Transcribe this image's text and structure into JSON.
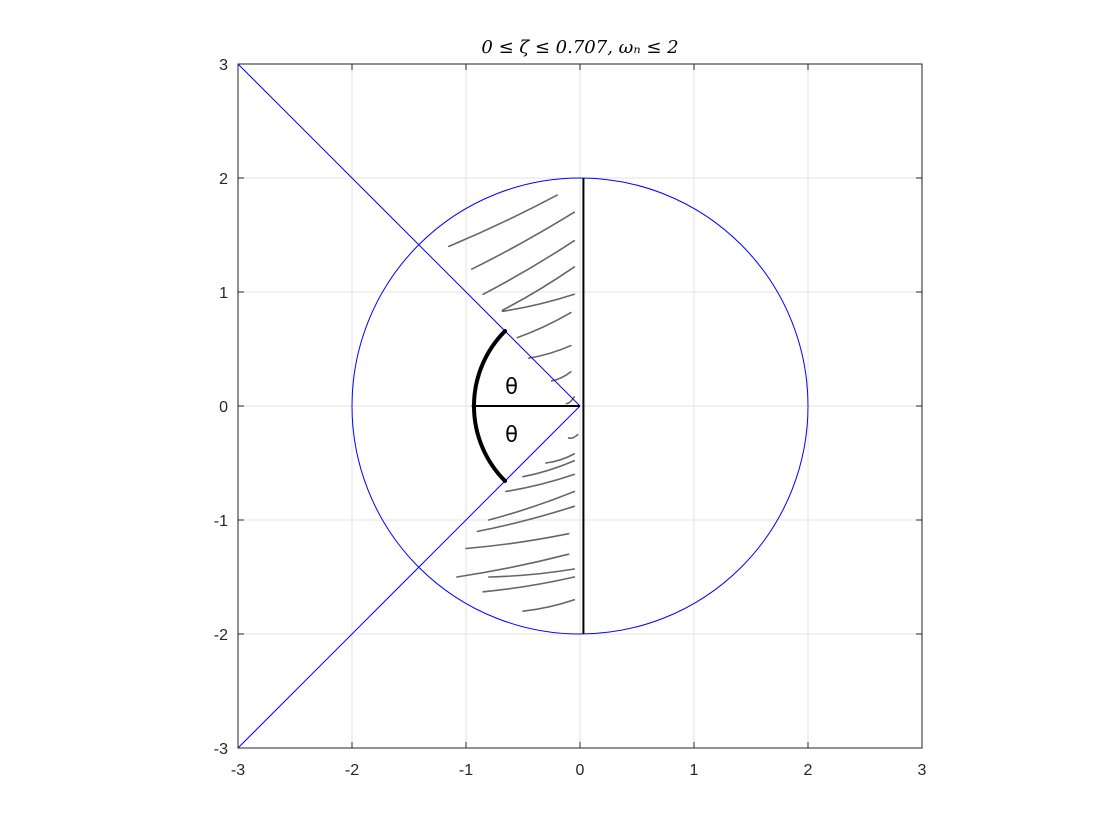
{
  "chart_data": {
    "type": "line",
    "title": "0 ≤ ζ ≤ 0.707, ωₙ ≤ 2",
    "xlabel": "",
    "ylabel": "",
    "xlim": [
      -3,
      3
    ],
    "ylim": [
      -3,
      3
    ],
    "grid": true,
    "x_ticks": [
      -3,
      -2,
      -1,
      0,
      1,
      2,
      3
    ],
    "y_ticks": [
      -3,
      -2,
      -1,
      0,
      1,
      2,
      3
    ],
    "x_tick_labels": [
      "-3",
      "-2",
      "-1",
      "0",
      "1",
      "2",
      "3"
    ],
    "y_tick_labels": [
      "-3",
      "-2",
      "-1",
      "0",
      "1",
      "2",
      "3"
    ],
    "series": [
      {
        "color": "#0000ff",
        "kind": "circle",
        "center": [
          0,
          0
        ],
        "radius": 2
      },
      {
        "color": "#0000ff",
        "kind": "line",
        "x": [
          -3,
          0
        ],
        "y": [
          3,
          0
        ]
      },
      {
        "color": "#0000ff",
        "kind": "line",
        "x": [
          -3,
          0
        ],
        "y": [
          -3,
          0
        ]
      }
    ],
    "annotations": {
      "imag_axis_segment": {
        "x": [
          0.03,
          0.03
        ],
        "y": [
          -2,
          2
        ],
        "color": "#000000"
      },
      "real_axis_segment": {
        "x": [
          -0.95,
          0
        ],
        "y": [
          0,
          0
        ],
        "color": "#000000"
      },
      "theta_arc_radius": 0.93,
      "theta_labels": [
        {
          "text": "θ",
          "x": -0.6,
          "y": 0.18
        },
        {
          "text": "θ",
          "x": -0.6,
          "y": -0.24
        }
      ],
      "hatch_region": "left-half of circle between the ζ=0.707 lines and the imaginary axis",
      "hatch_color": "#555555",
      "hatch_strokes": [
        [
          [
            -1.15,
            1.4
          ],
          [
            -0.2,
            1.85
          ]
        ],
        [
          [
            -0.95,
            1.2
          ],
          [
            -0.05,
            1.7
          ]
        ],
        [
          [
            -0.85,
            0.98
          ],
          [
            -0.05,
            1.45
          ]
        ],
        [
          [
            -0.68,
            0.84
          ],
          [
            -0.05,
            1.22
          ]
        ],
        [
          [
            -0.68,
            0.83
          ],
          [
            -0.05,
            0.98
          ]
        ],
        [
          [
            -0.55,
            0.6
          ],
          [
            -0.08,
            0.82
          ]
        ],
        [
          [
            -0.45,
            0.42
          ],
          [
            -0.08,
            0.53
          ]
        ],
        [
          [
            -0.25,
            0.22
          ],
          [
            -0.08,
            0.3
          ]
        ],
        [
          [
            -0.12,
            0.02
          ],
          [
            -0.05,
            0.08
          ]
        ],
        [
          [
            -0.1,
            -0.28
          ],
          [
            -0.02,
            -0.25
          ]
        ],
        [
          [
            -0.3,
            -0.5
          ],
          [
            -0.05,
            -0.42
          ]
        ],
        [
          [
            -0.5,
            -0.62
          ],
          [
            -0.05,
            -0.48
          ]
        ],
        [
          [
            -0.65,
            -0.75
          ],
          [
            -0.05,
            -0.6
          ]
        ],
        [
          [
            -0.8,
            -1.0
          ],
          [
            -0.05,
            -0.75
          ]
        ],
        [
          [
            -0.9,
            -1.1
          ],
          [
            -0.05,
            -0.88
          ]
        ],
        [
          [
            -1.0,
            -1.25
          ],
          [
            -0.1,
            -1.12
          ]
        ],
        [
          [
            -1.08,
            -1.5
          ],
          [
            -0.1,
            -1.3
          ]
        ],
        [
          [
            -0.8,
            -1.5
          ],
          [
            -0.05,
            -1.43
          ]
        ],
        [
          [
            -0.85,
            -1.63
          ],
          [
            -0.05,
            -1.5
          ]
        ],
        [
          [
            -0.5,
            -1.8
          ],
          [
            -0.05,
            -1.7
          ]
        ]
      ]
    }
  }
}
